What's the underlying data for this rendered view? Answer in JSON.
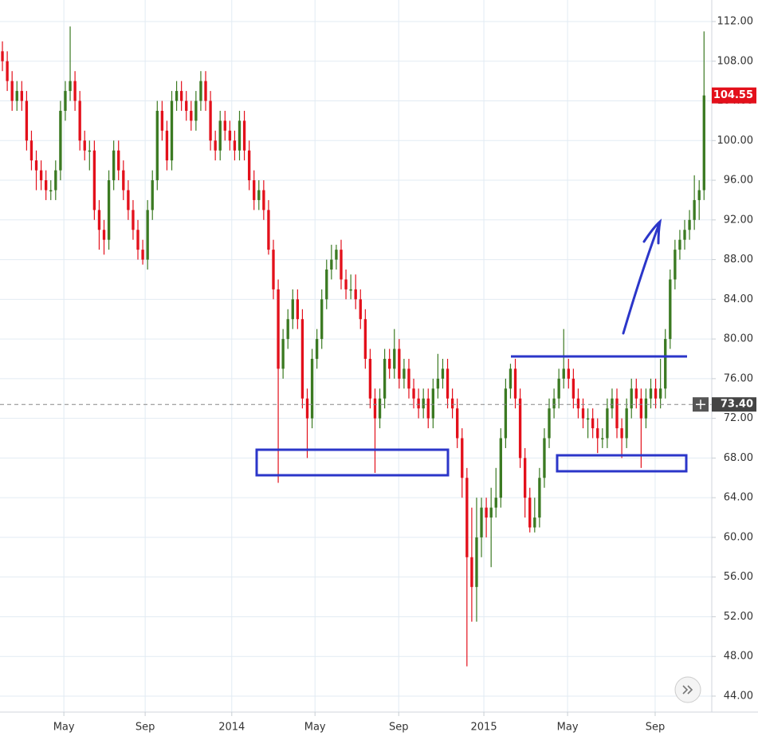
{
  "chart_data": {
    "type": "candlestick",
    "up_color": "#3b7a22",
    "down_color": "#e3101b",
    "grid": true,
    "xlim": [
      -0.5,
      146.6
    ],
    "ylim": [
      42.39,
      114.17
    ],
    "xticks": [
      {
        "value": 12.7,
        "label": "May"
      },
      {
        "value": 29.5,
        "label": "Sep"
      },
      {
        "value": 47.4,
        "label": "2014"
      },
      {
        "value": 64.6,
        "label": "May"
      },
      {
        "value": 81.9,
        "label": "Sep"
      },
      {
        "value": 99.5,
        "label": "2015"
      },
      {
        "value": 116.8,
        "label": "May"
      },
      {
        "value": 134.9,
        "label": "Sep"
      }
    ],
    "yticks": [
      {
        "value": 112,
        "label": "112.00"
      },
      {
        "value": 108,
        "label": "108.00"
      },
      {
        "value": 104,
        "label": "104.00"
      },
      {
        "value": 100,
        "label": "100.00"
      },
      {
        "value": 96,
        "label": "96.00"
      },
      {
        "value": 92,
        "label": "92.00"
      },
      {
        "value": 88,
        "label": "88.00"
      },
      {
        "value": 84,
        "label": "84.00"
      },
      {
        "value": 80,
        "label": "80.00"
      },
      {
        "value": 76,
        "label": "76.00"
      },
      {
        "value": 72,
        "label": "72.00"
      },
      {
        "value": 68,
        "label": "68.00"
      },
      {
        "value": 64,
        "label": "64.00"
      },
      {
        "value": 60,
        "label": "60.00"
      },
      {
        "value": 56,
        "label": "56.00"
      },
      {
        "value": 52,
        "label": "52.00"
      },
      {
        "value": 48,
        "label": "48.00"
      },
      {
        "value": 44,
        "label": "44.00"
      }
    ],
    "last_price": 104.55,
    "crosshair": {
      "value": 73.4,
      "label": "73.40"
    },
    "open": [
      109,
      108,
      106,
      104,
      105,
      104,
      100,
      98,
      97,
      96,
      95,
      95,
      97,
      103,
      105,
      106,
      104,
      100,
      99,
      99,
      93,
      91,
      90,
      96,
      99,
      97,
      95,
      93,
      91,
      89,
      88,
      93,
      96,
      103,
      101,
      98,
      104,
      105,
      104,
      103,
      102,
      104,
      106,
      104,
      100,
      99,
      102,
      101,
      100,
      99,
      102,
      99,
      96,
      94,
      95,
      93,
      89,
      85,
      77,
      80,
      82,
      84,
      82,
      74,
      72,
      78,
      80,
      84,
      87,
      88,
      89,
      86,
      85,
      85,
      84,
      82,
      78,
      74,
      72,
      74,
      78,
      77,
      79,
      76,
      77,
      75,
      74,
      73,
      74,
      72,
      75,
      76,
      77,
      74,
      73,
      70,
      66,
      58,
      55,
      60,
      63,
      62,
      63,
      64,
      70,
      75,
      77,
      74,
      68,
      64,
      61,
      62,
      66,
      70,
      73,
      74,
      76,
      77,
      76,
      74,
      73,
      72,
      72,
      71,
      70,
      70,
      73,
      74,
      71,
      70,
      73,
      75,
      74,
      72,
      74,
      75,
      74,
      75,
      80,
      86,
      89,
      90,
      91,
      92,
      94,
      95
    ],
    "high": [
      110,
      109,
      107,
      106,
      106,
      105,
      101,
      99,
      98,
      97,
      96,
      98,
      104,
      106,
      111.5,
      107,
      105,
      101,
      100,
      100,
      94,
      92,
      97,
      100,
      100,
      98,
      96,
      94,
      92,
      90,
      94,
      97,
      104,
      104,
      102,
      105,
      106,
      106,
      105,
      104,
      105,
      107,
      107,
      105,
      101,
      103,
      103,
      102,
      101,
      103,
      103,
      100,
      97,
      96,
      96,
      94,
      90,
      86,
      81,
      83,
      85,
      85,
      83,
      75,
      79,
      81,
      85,
      88,
      89.5,
      89.5,
      90,
      87,
      86.5,
      86.5,
      85,
      83,
      79,
      75,
      75,
      79,
      79,
      81,
      80,
      78,
      78,
      76,
      75,
      75,
      75,
      76,
      78.5,
      78,
      78,
      75,
      74,
      71,
      67,
      63,
      64,
      64,
      64,
      65,
      67,
      71,
      76,
      77.5,
      78,
      75,
      69,
      65,
      64,
      67,
      71,
      74,
      75,
      77,
      81,
      78,
      77,
      75,
      74,
      73,
      73,
      72,
      71,
      74,
      75,
      75,
      72,
      74,
      76,
      76,
      75,
      75,
      76,
      76,
      78,
      81,
      87,
      90,
      91,
      92,
      93,
      96.5,
      96,
      111
    ],
    "low": [
      107,
      105,
      103,
      103,
      103,
      99,
      97,
      95,
      95,
      94,
      94,
      94,
      96,
      102,
      104,
      103,
      99,
      98,
      97,
      92,
      89,
      88.5,
      89,
      95,
      96,
      94,
      92,
      90,
      88,
      87.5,
      87,
      92,
      95,
      100,
      97,
      97,
      103,
      103,
      102,
      101,
      101,
      103,
      103,
      99,
      98,
      98,
      100,
      99,
      98,
      98,
      98,
      95,
      93,
      93,
      92,
      88.5,
      84,
      65.5,
      76,
      79,
      81,
      81,
      73,
      68,
      71,
      77,
      79,
      83,
      86,
      87,
      85,
      84,
      84,
      83,
      81,
      77,
      73,
      66.5,
      71,
      73,
      76,
      76,
      75,
      75,
      74,
      73,
      72,
      72,
      71,
      71,
      74,
      75,
      73,
      72,
      69,
      64,
      47,
      51.5,
      51.5,
      58,
      60,
      57,
      62,
      63,
      69,
      74,
      73,
      67,
      62,
      60.5,
      60.5,
      61,
      65,
      69,
      72,
      73,
      75,
      75,
      73,
      72,
      71,
      70,
      70,
      68.5,
      69,
      69,
      72,
      70,
      68,
      69,
      72,
      73,
      67,
      71,
      73,
      73,
      73,
      74,
      79,
      85,
      88,
      89,
      90,
      91,
      92,
      94
    ],
    "close": [
      108,
      106,
      104,
      105,
      104,
      100,
      98,
      97,
      96,
      95,
      95,
      97,
      103,
      105,
      106,
      104,
      100,
      99,
      99,
      93,
      91,
      90,
      96,
      99,
      97,
      95,
      93,
      91,
      89,
      88,
      93,
      96,
      103,
      101,
      98,
      104,
      105,
      104,
      103,
      102,
      104,
      106,
      104,
      100,
      99,
      102,
      101,
      100,
      99,
      102,
      99,
      96,
      94,
      95,
      93,
      89,
      85,
      77,
      80,
      82,
      84,
      82,
      74,
      72,
      78,
      80,
      84,
      87,
      88,
      89,
      86,
      85,
      85,
      84,
      82,
      78,
      74,
      72,
      74,
      78,
      77,
      79,
      76,
      77,
      75,
      74,
      73,
      74,
      72,
      75,
      76,
      77,
      74,
      73,
      70,
      66,
      58,
      55,
      60,
      63,
      62,
      63,
      64,
      70,
      75,
      77,
      74,
      68,
      64,
      61,
      62,
      66,
      70,
      73,
      74,
      76,
      77,
      76,
      74,
      73,
      72,
      72,
      71,
      70,
      70,
      73,
      74,
      71,
      70,
      73,
      75,
      74,
      72,
      74,
      75,
      74,
      75,
      80,
      86,
      89,
      90,
      91,
      92,
      94,
      95,
      104.55
    ]
  }
}
